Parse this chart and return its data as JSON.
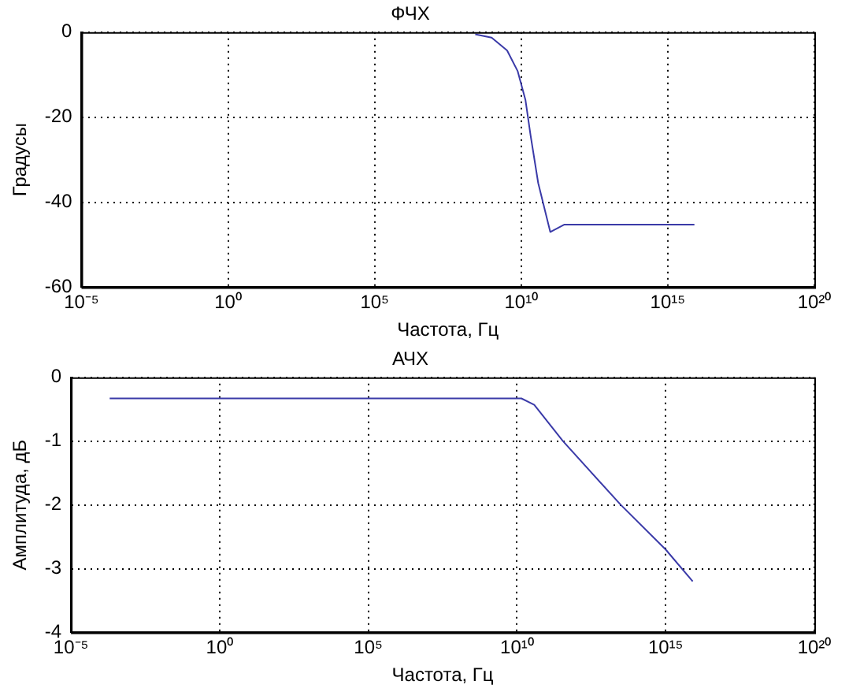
{
  "chart_data": [
    {
      "type": "line",
      "title": "ФЧХ",
      "xlabel": "Частота, Гц",
      "ylabel": "Градусы",
      "log": "x",
      "grid": true,
      "marker": "none",
      "line_style": "solid",
      "color": "#3a3aa8",
      "x": [
        270000000.0,
        980000000.0,
        3300000000.0,
        7600000000.0,
        14000000000.0,
        21000000000.0,
        38000000000.0,
        98000000000.0,
        290000000000.0,
        8100000000000000.0
      ],
      "values": [
        -0.5,
        -1.3,
        -4.3,
        -9.2,
        -16,
        -24.4,
        -35.5,
        -47,
        -45.3,
        -45.3
      ],
      "xlim": [
        1e-05,
        1e+20
      ],
      "ylim": [
        -60,
        0
      ],
      "xticks": [
        {
          "value": 1e-05,
          "label": "10⁻⁵"
        },
        {
          "value": 1,
          "label": "10⁰"
        },
        {
          "value": 100000.0,
          "label": "10⁵"
        },
        {
          "value": 10000000000.0,
          "label": "10¹⁰"
        },
        {
          "value": 1000000000000000.0,
          "label": "10¹⁵"
        },
        {
          "value": 1e+20,
          "label": "10²⁰"
        }
      ],
      "yticks": [
        {
          "value": -60,
          "label": "-60"
        },
        {
          "value": -40,
          "label": "-40"
        },
        {
          "value": -20,
          "label": "-20"
        },
        0
      ]
    },
    {
      "type": "line",
      "title": "АЧХ",
      "xlabel": "Частота, Гц",
      "ylabel": "Амплитуда, дБ",
      "log": "x",
      "grid": true,
      "marker": "none",
      "line_style": "solid",
      "color": "#3a3aa8",
      "x": [
        0.0002,
        14000000000.0,
        38000000000.0,
        350000000000.0,
        31000000000000.0,
        1000000000000000.0,
        8100000000000000.0
      ],
      "values": [
        -0.33,
        -0.33,
        -0.43,
        -1.0,
        -2.0,
        -2.7,
        -3.2
      ],
      "xlim": [
        1e-05,
        1e+20
      ],
      "ylim": [
        -4,
        0
      ],
      "xticks": [
        {
          "value": 1e-05,
          "label": "10⁻⁵"
        },
        {
          "value": 1,
          "label": "10⁰"
        },
        {
          "value": 100000.0,
          "label": "10⁵"
        },
        {
          "value": 10000000000.0,
          "label": "10¹⁰"
        },
        {
          "value": 1000000000000000.0,
          "label": "10¹⁵"
        },
        {
          "value": 1e+20,
          "label": "10²⁰"
        }
      ],
      "yticks": [
        {
          "value": -4,
          "label": "-4"
        },
        {
          "value": -3,
          "label": "-3"
        },
        {
          "value": -2,
          "label": "-2"
        },
        {
          "value": -1,
          "label": "-1"
        },
        0
      ]
    }
  ]
}
